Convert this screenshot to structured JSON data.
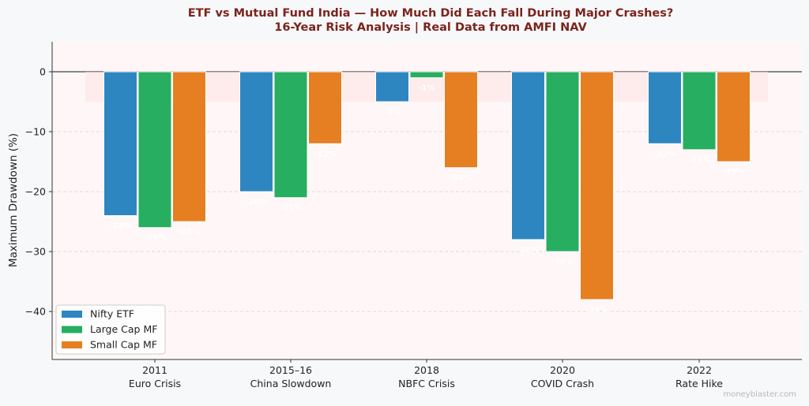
{
  "chart_data": {
    "type": "bar",
    "title": "ETF vs Mutual Fund India — How Much Did Each Fall During Major Crashes?",
    "subtitle": "16-Year Risk Analysis | Real Data from AMFI NAV",
    "xlabel": "",
    "ylabel": "Maximum Drawdown (%)",
    "ylim": [
      -48,
      5
    ],
    "yticks": [
      0,
      -10,
      -20,
      -30,
      -40
    ],
    "ytick_labels": [
      "0",
      "−10",
      "−20",
      "−30",
      "−40"
    ],
    "categories": [
      [
        "2011",
        "Euro Crisis"
      ],
      [
        "2015–16",
        "China Slowdown"
      ],
      [
        "2018",
        "NBFC Crisis"
      ],
      [
        "2020",
        "COVID Crash"
      ],
      [
        "2022",
        "Rate Hike"
      ]
    ],
    "series": [
      {
        "name": "Nifty ETF",
        "color": "#2e86c1",
        "values": [
          -24,
          -20,
          -5,
          -28,
          -12
        ],
        "labels": [
          "-24%",
          "-20%",
          "-5%",
          "-28%",
          "-12%"
        ]
      },
      {
        "name": "Large Cap MF",
        "color": "#27ae60",
        "values": [
          -26,
          -21,
          -1,
          -30,
          -13
        ],
        "labels": [
          "-26%",
          "-21%",
          "-1%",
          "-30%",
          "-13%"
        ]
      },
      {
        "name": "Small Cap MF",
        "color": "#e67e22",
        "values": [
          -25,
          -12,
          -16,
          -38,
          -15
        ],
        "labels": [
          "-25%",
          "-12%",
          "-16%",
          "-38%",
          "-15%"
        ]
      }
    ],
    "shaded_band": [
      -5,
      0
    ],
    "grid": true,
    "legend_position": "lower-left"
  },
  "watermark": "moneyblaster.com"
}
